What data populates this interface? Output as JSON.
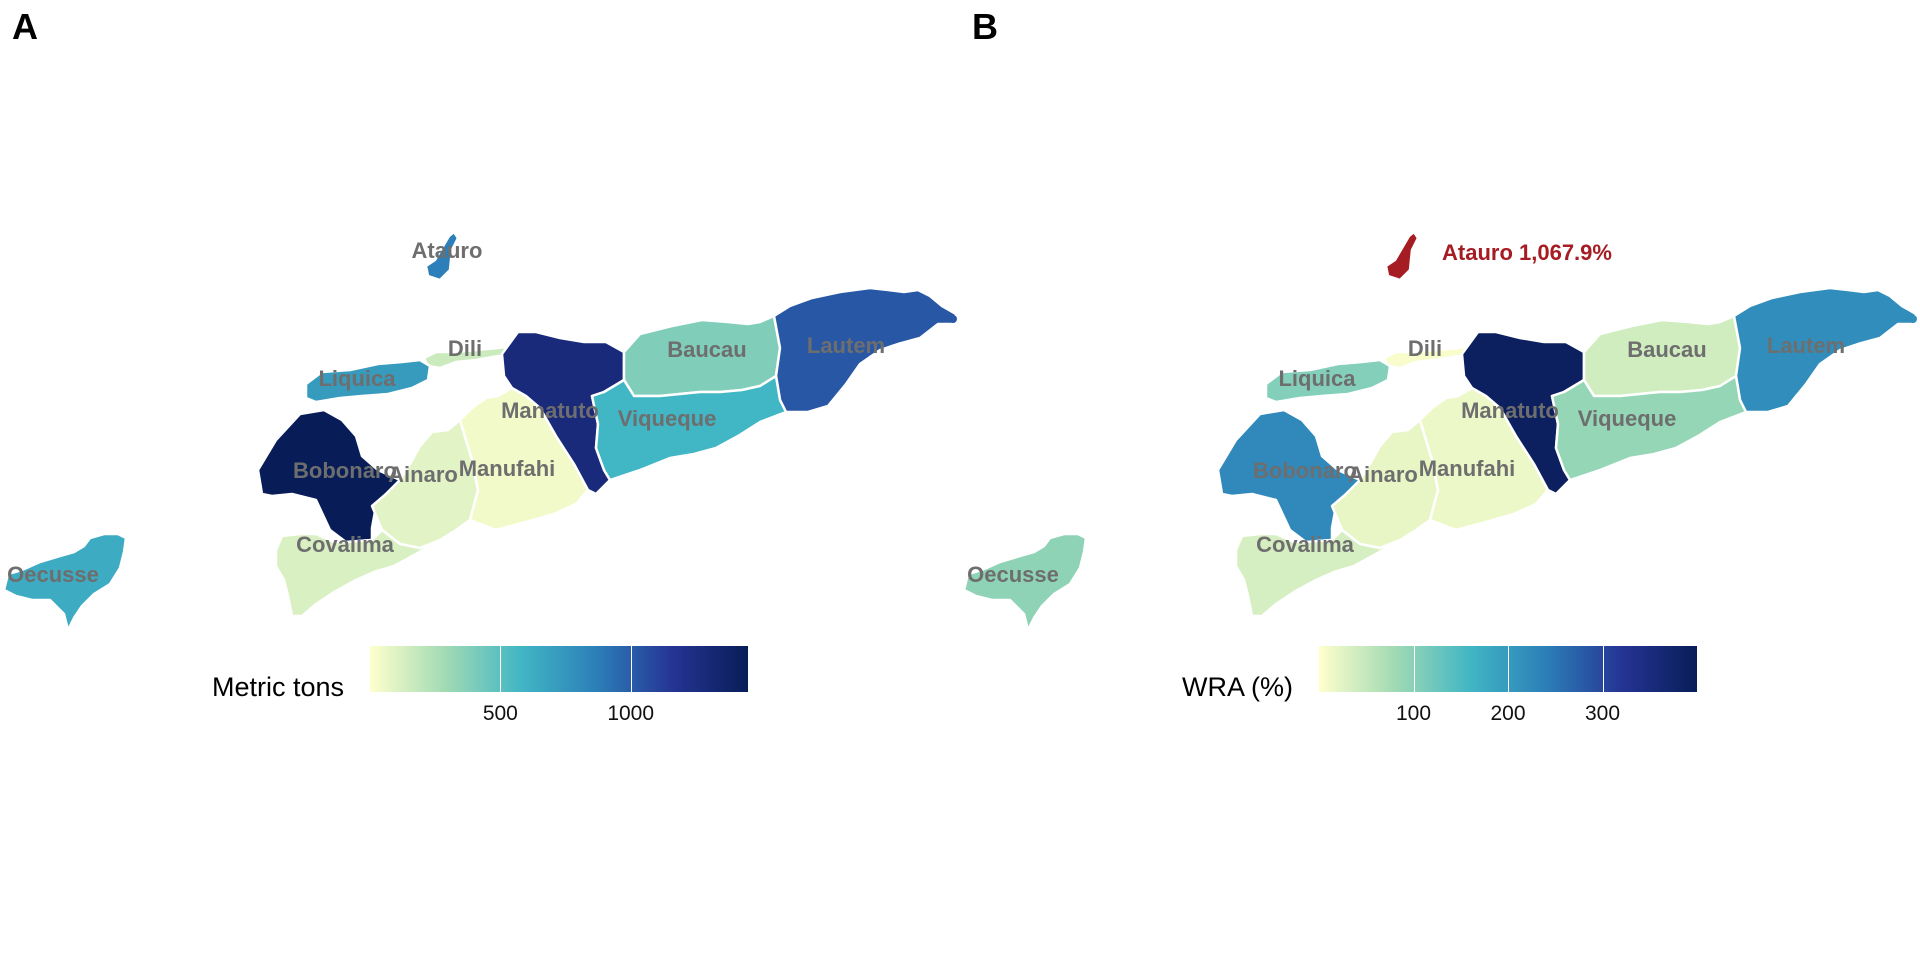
{
  "panels": [
    {
      "letter": "A",
      "legend": {
        "title": "Metric tons",
        "ticks": [
          "500",
          "1000"
        ],
        "min": 0,
        "max": 1450,
        "tick_values": [
          500,
          1000
        ]
      },
      "values": {
        "Atauro": 870,
        "Dili": 160,
        "Liquica": 720,
        "Bobonaro": 1460,
        "Ainaro": 90,
        "Manufahi": 40,
        "Manatuto": 1280,
        "Baucau": 390,
        "Lautem": 1020,
        "Viqueque": 580,
        "Covalima": 120,
        "Oecusse": 640
      },
      "callout": null
    },
    {
      "letter": "B",
      "legend": {
        "title": "WRA (%)",
        "ticks": [
          "100",
          "200",
          "300"
        ],
        "min": 0,
        "max": 400,
        "tick_values": [
          100,
          200,
          300
        ]
      },
      "values": {
        "Atauro": null,
        "Dili": 5,
        "Liquica": 105,
        "Bobonaro": 225,
        "Ainaro": 20,
        "Manufahi": 15,
        "Manatuto": 390,
        "Baucau": 40,
        "Lautem": 220,
        "Viqueque": 90,
        "Covalima": 35,
        "Oecusse": 95
      },
      "callout": {
        "district": "Atauro",
        "text": "Atauro 1,067.9%",
        "color": "#a51c22"
      }
    }
  ],
  "district_labels": [
    "Atauro",
    "Dili",
    "Liquica",
    "Bobonaro",
    "Ainaro",
    "Manufahi",
    "Manatuto",
    "Baucau",
    "Lautem",
    "Viqueque",
    "Covalima",
    "Oecusse"
  ],
  "colors": {
    "scale": [
      "#ffffcc",
      "#a1dab4",
      "#41b6c4",
      "#2c7fb8",
      "#253494",
      "#081d58"
    ],
    "border": "#ffffff",
    "label": "#6e6e6e"
  }
}
